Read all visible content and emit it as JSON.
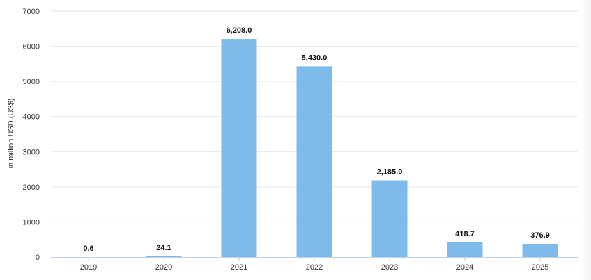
{
  "chart_data": {
    "type": "bar",
    "categories": [
      "2019",
      "2020",
      "2021",
      "2022",
      "2023",
      "2024",
      "2025"
    ],
    "values": [
      0.6,
      24.1,
      6208.0,
      5430.0,
      2185.0,
      418.7,
      376.9
    ],
    "data_labels": [
      "0.6",
      "24.1",
      "6,208.0",
      "5,430.0",
      "2,185.0",
      "418.7",
      "376.9"
    ],
    "ylabel": "in million USD (US$)",
    "ylim": [
      0,
      7000
    ],
    "yticks": [
      0,
      1000,
      2000,
      3000,
      4000,
      5000,
      6000,
      7000
    ],
    "grid": true,
    "bar_color": "#7cbbea"
  }
}
